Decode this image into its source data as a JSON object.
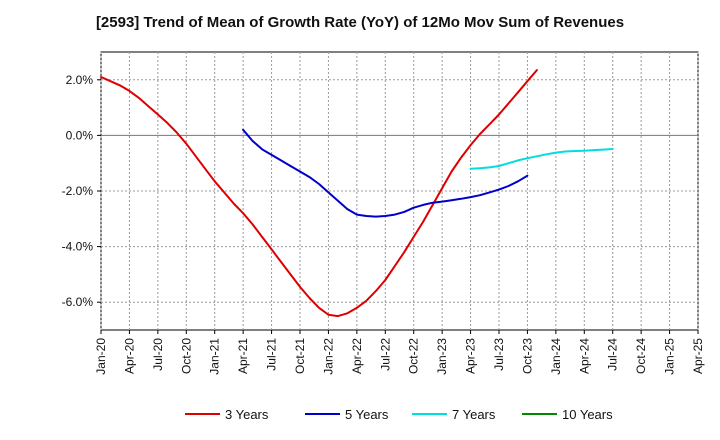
{
  "chart_data": {
    "type": "line",
    "title": "[2593]  Trend of Mean of Growth Rate (YoY) of 12Mo Mov Sum of Revenues",
    "xlabel": "",
    "ylabel": "",
    "x_tick_labels": [
      "Jan-20",
      "Apr-20",
      "Jul-20",
      "Oct-20",
      "Jan-21",
      "Apr-21",
      "Jul-21",
      "Oct-21",
      "Jan-22",
      "Apr-22",
      "Jul-22",
      "Oct-22",
      "Jan-23",
      "Apr-23",
      "Jul-23",
      "Oct-23",
      "Jan-24",
      "Apr-24",
      "Jul-24",
      "Oct-24",
      "Jan-25",
      "Apr-25"
    ],
    "y_ticks": [
      2.0,
      0.0,
      -2.0,
      -4.0,
      -6.0
    ],
    "y_tick_labels": [
      "2.0%",
      "0.0%",
      "-2.0%",
      "-4.0%",
      "-6.0%"
    ],
    "ylim": [
      -7.0,
      3.0
    ],
    "grid": true,
    "legend_position": "bottom",
    "series": [
      {
        "name": "3 Years",
        "color": "#dd0000",
        "start_index": 0,
        "values": [
          2.1,
          1.95,
          1.8,
          1.6,
          1.35,
          1.05,
          0.75,
          0.45,
          0.1,
          -0.3,
          -0.75,
          -1.2,
          -1.65,
          -2.05,
          -2.45,
          -2.8,
          -3.2,
          -3.65,
          -4.1,
          -4.55,
          -5.0,
          -5.45,
          -5.85,
          -6.2,
          -6.45,
          -6.5,
          -6.4,
          -6.2,
          -5.95,
          -5.6,
          -5.2,
          -4.7,
          -4.2,
          -3.65,
          -3.1,
          -2.5,
          -1.9,
          -1.3,
          -0.8,
          -0.35,
          0.05,
          0.4,
          0.75,
          1.15,
          1.55,
          1.95,
          2.35
        ]
      },
      {
        "name": "5 Years",
        "color": "#0000cc",
        "start_index": 15,
        "values": [
          0.2,
          -0.2,
          -0.5,
          -0.7,
          -0.9,
          -1.1,
          -1.3,
          -1.5,
          -1.75,
          -2.05,
          -2.35,
          -2.65,
          -2.85,
          -2.9,
          -2.92,
          -2.9,
          -2.85,
          -2.75,
          -2.6,
          -2.5,
          -2.42,
          -2.38,
          -2.33,
          -2.28,
          -2.22,
          -2.15,
          -2.05,
          -1.95,
          -1.82,
          -1.65,
          -1.45
        ]
      },
      {
        "name": "7 Years",
        "color": "#00dddd",
        "start_index": 39,
        "values": [
          -1.2,
          -1.18,
          -1.15,
          -1.1,
          -1.0,
          -0.9,
          -0.82,
          -0.75,
          -0.68,
          -0.62,
          -0.58,
          -0.56,
          -0.55,
          -0.53,
          -0.51,
          -0.49
        ]
      },
      {
        "name": "10 Years",
        "color": "#008800",
        "start_index": 0,
        "values": []
      }
    ]
  }
}
